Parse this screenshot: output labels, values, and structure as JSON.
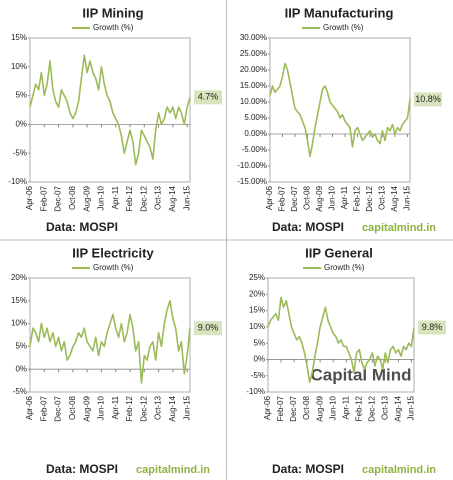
{
  "chart_data": [
    {
      "type": "line",
      "title": "IIP Mining",
      "legend": "Growth (%)",
      "color": "#9bbb59",
      "title_color": "#111111",
      "source": "Data: MOSPI",
      "end_label": "4.7%",
      "categories": [
        "Apr-06",
        null,
        null,
        null,
        null,
        "Feb-07",
        null,
        null,
        null,
        null,
        "Dec-07",
        null,
        null,
        null,
        null,
        "Oct-08",
        null,
        null,
        null,
        null,
        "Aug-09",
        null,
        null,
        null,
        null,
        "Jun-10",
        null,
        null,
        null,
        null,
        "Apr-11",
        null,
        null,
        null,
        null,
        "Feb-12",
        null,
        null,
        null,
        null,
        "Dec-12",
        null,
        null,
        null,
        null,
        "Oct-13",
        null,
        null,
        null,
        null,
        "Aug-14",
        null,
        null,
        null,
        null,
        "Jun-15",
        null
      ],
      "values": [
        3,
        5,
        7,
        6,
        9,
        5,
        7,
        11,
        6,
        4,
        3,
        6,
        5,
        4,
        2,
        1,
        2,
        4,
        8,
        12,
        9,
        11,
        9,
        8,
        6,
        10,
        7,
        5,
        4,
        2,
        1,
        0,
        -2,
        -5,
        -3,
        -1,
        -3,
        -7,
        -5,
        -1,
        -2,
        -3,
        -4,
        -6,
        -1,
        2,
        0,
        1,
        3,
        2,
        3,
        1,
        3,
        2,
        0,
        3,
        4.7
      ],
      "ylim": [
        -10,
        15
      ],
      "yticks": [
        {
          "value": -10,
          "label": "-10%"
        },
        {
          "value": -5,
          "label": "-5%"
        },
        {
          "value": 0,
          "label": "0%"
        },
        {
          "value": 5,
          "label": "5%"
        },
        {
          "value": 10,
          "label": "10%"
        },
        {
          "value": 15,
          "label": "15%"
        }
      ]
    },
    {
      "type": "line",
      "title": "IIP Manufacturing",
      "legend": "Growth (%)",
      "color": "#9bbb59",
      "title_color": "#111111",
      "source": "Data: MOSPI",
      "credit": "capitalmind.in",
      "end_label": "10.8%",
      "categories": [
        "Apr-06",
        null,
        null,
        null,
        null,
        "Feb-07",
        null,
        null,
        null,
        null,
        "Dec-07",
        null,
        null,
        null,
        null,
        "Oct-08",
        null,
        null,
        null,
        null,
        "Aug-09",
        null,
        null,
        null,
        null,
        "Jun-10",
        null,
        null,
        null,
        null,
        "Apr-11",
        null,
        null,
        null,
        null,
        "Feb-12",
        null,
        null,
        null,
        null,
        "Dec-12",
        null,
        null,
        null,
        null,
        "Oct-13",
        null,
        null,
        null,
        null,
        "Aug-14",
        null,
        null,
        null,
        null,
        "Jun-15",
        null
      ],
      "values": [
        12,
        15,
        13,
        14,
        15,
        18,
        22,
        20,
        16,
        12,
        8,
        7,
        6,
        4,
        2,
        -2,
        -7,
        -3,
        2,
        6,
        10,
        14,
        15,
        13,
        10,
        9,
        8,
        7,
        5,
        6,
        4,
        3,
        2,
        -4,
        1,
        2,
        0,
        -2,
        -1,
        0,
        1,
        -1,
        0,
        -2,
        -3,
        1,
        -2,
        2,
        1,
        3,
        0,
        2,
        1,
        3,
        4,
        5,
        10.8
      ],
      "ylim": [
        -15,
        30
      ],
      "yticks": [
        {
          "value": -15,
          "label": "-15.00%"
        },
        {
          "value": -10,
          "label": "-10.00%"
        },
        {
          "value": -5,
          "label": "-5.00%"
        },
        {
          "value": 0,
          "label": "0.00%"
        },
        {
          "value": 5,
          "label": "5.00%"
        },
        {
          "value": 10,
          "label": "10.00%"
        },
        {
          "value": 15,
          "label": "15.00%"
        },
        {
          "value": 20,
          "label": "20.00%"
        },
        {
          "value": 25,
          "label": "25.00%"
        },
        {
          "value": 30,
          "label": "30.00%"
        }
      ]
    },
    {
      "type": "line",
      "title": "IIP Electricity",
      "legend": "Growth (%)",
      "color": "#9bbb59",
      "title_color": "#111111",
      "source": "Data: MOSPI",
      "credit": "capitalmind.in",
      "end_label": "9.0%",
      "categories": [
        "Apr-06",
        null,
        null,
        null,
        null,
        "Feb-07",
        null,
        null,
        null,
        null,
        "Dec-07",
        null,
        null,
        null,
        null,
        "Oct-08",
        null,
        null,
        null,
        null,
        "Aug-09",
        null,
        null,
        null,
        null,
        "Jun-10",
        null,
        null,
        null,
        null,
        "Apr-11",
        null,
        null,
        null,
        null,
        "Feb-12",
        null,
        null,
        null,
        null,
        "Dec-12",
        null,
        null,
        null,
        null,
        "Oct-13",
        null,
        null,
        null,
        null,
        "Aug-14",
        null,
        null,
        null,
        null,
        "Jun-15",
        null
      ],
      "values": [
        5,
        9,
        8,
        6,
        10,
        7,
        9,
        6,
        8,
        5,
        7,
        4,
        6,
        2,
        3,
        5,
        6,
        8,
        7,
        9,
        6,
        5,
        4,
        7,
        3,
        6,
        5,
        8,
        10,
        12,
        9,
        7,
        10,
        6,
        8,
        12,
        9,
        4,
        6,
        -3,
        3,
        2,
        5,
        6,
        2,
        8,
        5,
        10,
        13,
        15,
        11,
        9,
        4,
        6,
        -1,
        3,
        9.0
      ],
      "ylim": [
        -5,
        20
      ],
      "yticks": [
        {
          "value": -5,
          "label": "-5%"
        },
        {
          "value": 0,
          "label": "0%"
        },
        {
          "value": 5,
          "label": "5%"
        },
        {
          "value": 10,
          "label": "10%"
        },
        {
          "value": 15,
          "label": "15%"
        },
        {
          "value": 20,
          "label": "20%"
        }
      ]
    },
    {
      "type": "line",
      "title": "IIP General",
      "legend": "Growth (%)",
      "color": "#9bbb59",
      "title_color": "#c0504d",
      "source": "Data: MOSPI",
      "credit": "capitalmind.in",
      "watermark": "Capital Mind",
      "end_label": "9.8%",
      "categories": [
        "Apr-06",
        null,
        null,
        null,
        null,
        "Feb-07",
        null,
        null,
        null,
        null,
        "Dec-07",
        null,
        null,
        null,
        null,
        "Oct-08",
        null,
        null,
        null,
        null,
        "Aug-09",
        null,
        null,
        null,
        null,
        "Jun-10",
        null,
        null,
        null,
        null,
        "Apr-11",
        null,
        null,
        null,
        null,
        "Feb-12",
        null,
        null,
        null,
        null,
        "Dec-12",
        null,
        null,
        null,
        null,
        "Oct-13",
        null,
        null,
        null,
        null,
        "Aug-14",
        null,
        null,
        null,
        null,
        "Jun-15",
        null
      ],
      "values": [
        10,
        12,
        13,
        14,
        12,
        19,
        16,
        18,
        14,
        10,
        8,
        6,
        7,
        5,
        2,
        -2,
        -7,
        -4,
        1,
        5,
        10,
        13,
        16,
        12,
        10,
        8,
        7,
        5,
        6,
        4,
        4,
        2,
        0,
        -4,
        2,
        3,
        -1,
        -3,
        -1,
        0,
        2,
        -2,
        1,
        0,
        -3,
        2,
        -1,
        3,
        4,
        2,
        3,
        1,
        4,
        3,
        5,
        4,
        9.8
      ],
      "ylim": [
        -10,
        25
      ],
      "yticks": [
        {
          "value": -10,
          "label": "-10%"
        },
        {
          "value": -5,
          "label": "-5%"
        },
        {
          "value": 0,
          "label": "0%"
        },
        {
          "value": 5,
          "label": "5%"
        },
        {
          "value": 10,
          "label": "10%"
        },
        {
          "value": 15,
          "label": "15%"
        },
        {
          "value": 20,
          "label": "20%"
        },
        {
          "value": 25,
          "label": "25%"
        }
      ]
    }
  ]
}
